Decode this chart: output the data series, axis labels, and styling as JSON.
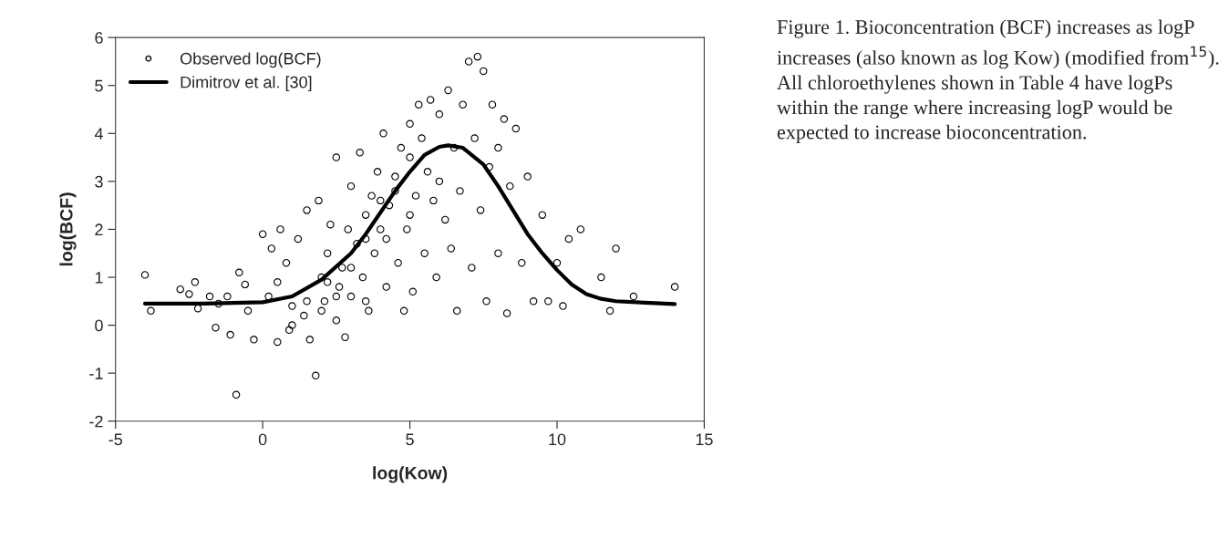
{
  "chart_data": {
    "type": "scatter",
    "xlabel": "log(Kow)",
    "ylabel": "log(BCF)",
    "xlim": [
      -5,
      15
    ],
    "xticks": [
      -5,
      0,
      5,
      10,
      15
    ],
    "ylim": [
      -2,
      6
    ],
    "yticks": [
      -2,
      -1,
      0,
      1,
      2,
      3,
      4,
      5,
      6
    ],
    "grid": false,
    "legend": "top left",
    "annotations": [
      "Figure 1. Bioconcentration (BCF) increases as logP increases (also known as log Kow) (modified from$^{15}$). All chloroethylenes shown in Table 4 have logPs within the range where increasing logP would be expected to increase bioconcentration."
    ],
    "series": [
      {
        "name": "Observed log(BCF)",
        "marker": "circle",
        "color": "#000000",
        "x": [
          -4.0,
          -3.8,
          -2.8,
          -2.5,
          -2.3,
          -2.2,
          -1.8,
          -1.5,
          -1.6,
          -1.2,
          -1.1,
          -0.9,
          -0.8,
          -0.6,
          -0.5,
          -0.3,
          0.0,
          0.2,
          0.3,
          0.5,
          0.6,
          0.8,
          0.9,
          1.0,
          1.2,
          1.4,
          1.5,
          1.6,
          1.8,
          1.9,
          2.0,
          2.1,
          2.2,
          2.3,
          2.5,
          2.5,
          2.6,
          2.7,
          2.8,
          2.9,
          3.0,
          3.0,
          3.2,
          3.3,
          3.4,
          3.5,
          3.6,
          3.7,
          3.8,
          3.9,
          4.0,
          4.1,
          4.2,
          4.3,
          4.5,
          4.6,
          4.7,
          4.8,
          4.9,
          5.0,
          5.0,
          5.1,
          5.2,
          5.3,
          5.4,
          5.5,
          5.6,
          5.7,
          5.8,
          5.9,
          6.0,
          6.0,
          6.2,
          6.3,
          6.4,
          6.5,
          6.6,
          6.7,
          6.8,
          7.0,
          7.1,
          7.2,
          7.3,
          7.4,
          7.5,
          7.6,
          7.7,
          7.8,
          8.0,
          8.0,
          8.2,
          8.3,
          8.4,
          8.6,
          8.8,
          9.0,
          9.2,
          9.5,
          9.7,
          10.0,
          10.2,
          10.4,
          10.8,
          11.5,
          11.8,
          12.0,
          12.6,
          14.0,
          1.5,
          2.0,
          2.5,
          3.0,
          3.5,
          4.0,
          4.5,
          3.5,
          2.2,
          4.2,
          5.0,
          1.0,
          0.5
        ],
        "values": [
          1.05,
          0.3,
          0.75,
          0.65,
          0.9,
          0.35,
          0.6,
          0.45,
          -0.05,
          0.6,
          -0.2,
          -1.45,
          1.1,
          0.85,
          0.3,
          -0.3,
          1.9,
          0.6,
          1.6,
          -0.35,
          2.0,
          1.3,
          -0.1,
          0.4,
          1.8,
          0.2,
          2.4,
          -0.3,
          -1.05,
          2.6,
          1.0,
          0.5,
          1.5,
          2.1,
          0.1,
          3.5,
          0.8,
          1.2,
          -0.25,
          2.0,
          0.6,
          2.9,
          1.7,
          3.6,
          1.0,
          2.3,
          0.3,
          2.7,
          1.5,
          3.2,
          2.0,
          4.0,
          0.8,
          2.5,
          3.1,
          1.3,
          3.7,
          0.3,
          2.0,
          3.5,
          4.2,
          0.7,
          2.7,
          4.6,
          3.9,
          1.5,
          3.2,
          4.7,
          2.6,
          1.0,
          4.4,
          3.0,
          2.2,
          4.9,
          1.6,
          3.7,
          0.3,
          2.8,
          4.6,
          5.5,
          1.2,
          3.9,
          5.6,
          2.4,
          5.3,
          0.5,
          3.3,
          4.6,
          3.7,
          1.5,
          4.3,
          0.25,
          2.9,
          4.1,
          1.3,
          3.1,
          0.5,
          2.3,
          0.5,
          1.3,
          0.4,
          1.8,
          2.0,
          1.0,
          0.3,
          1.6,
          0.6,
          0.8,
          0.5,
          0.3,
          0.6,
          1.2,
          1.8,
          2.6,
          2.8,
          0.5,
          0.9,
          1.8,
          2.3,
          0.0,
          0.9
        ]
      },
      {
        "name": "Dimitrov et al. [30]",
        "type": "line",
        "color": "#000000",
        "x": [
          -4,
          -2,
          0,
          1,
          2,
          3,
          3.5,
          4,
          4.5,
          5,
          5.5,
          6,
          6.3,
          6.8,
          7.5,
          8,
          8.5,
          9,
          9.5,
          10,
          10.5,
          11,
          11.5,
          12,
          13,
          14
        ],
        "values": [
          0.45,
          0.45,
          0.48,
          0.6,
          0.95,
          1.5,
          1.9,
          2.35,
          2.8,
          3.2,
          3.55,
          3.72,
          3.75,
          3.7,
          3.35,
          2.9,
          2.4,
          1.9,
          1.5,
          1.15,
          0.85,
          0.65,
          0.55,
          0.5,
          0.47,
          0.44
        ]
      }
    ]
  }
}
